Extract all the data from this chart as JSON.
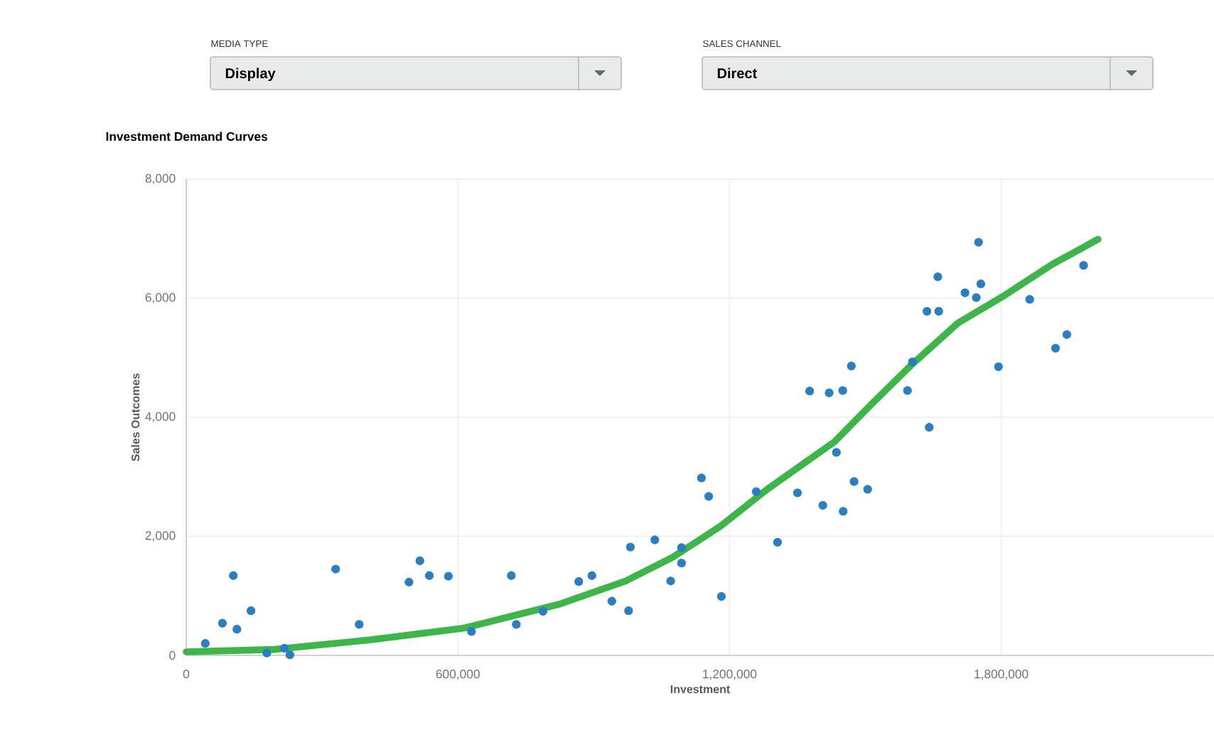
{
  "chart_data": {
    "type": "scatter",
    "title": "Investment Demand Curves",
    "xlabel": "Investment",
    "ylabel": "Sales Outcomes",
    "annotations": [
      "MEDIA TYPE",
      "Display",
      "SALES CHANNEL",
      "Direct"
    ],
    "xlim": [
      0,
      2270000
    ],
    "ylim": [
      0,
      8000
    ],
    "xticks": [
      0,
      {
        "value": 600000,
        "label": "600,000"
      },
      {
        "value": 1200000,
        "label": "1,200,000"
      },
      {
        "value": 1800000,
        "label": "1,800,000"
      }
    ],
    "yticks": [
      0,
      {
        "value": 2000,
        "label": "2,000"
      },
      {
        "value": 4000,
        "label": "4,000"
      },
      {
        "value": 6000,
        "label": "6,000"
      },
      {
        "value": 8000,
        "label": "8,000"
      }
    ],
    "grid": true,
    "series": [
      {
        "type": "scatter",
        "marker": "circle",
        "color": "#2b7fc1",
        "x": [
          42000,
          80000,
          104000,
          112000,
          143000,
          178000,
          217000,
          229000,
          330000,
          382000,
          492000,
          516000,
          537000,
          579000,
          630000,
          718000,
          729000,
          788000,
          867000,
          896000,
          940000,
          977000,
          981000,
          1035000,
          1070000,
          1094000,
          1094000,
          1138000,
          1154000,
          1182000,
          1259000,
          1306000,
          1350000,
          1377000,
          1406000,
          1420000,
          1436000,
          1450000,
          1451000,
          1469000,
          1475000,
          1505000,
          1593000,
          1604000,
          1641000,
          1636000,
          1662000,
          1660000,
          1720000,
          1745000,
          1750000,
          1755000,
          1794000,
          1863000,
          1920000,
          1945000,
          1982000
        ],
        "values": [
          200,
          540,
          1340,
          440,
          750,
          40,
          120,
          10,
          1450,
          520,
          1230,
          1590,
          1340,
          1330,
          400,
          1340,
          520,
          740,
          1240,
          1340,
          910,
          750,
          1820,
          1940,
          1250,
          1810,
          1550,
          2980,
          2670,
          990,
          2750,
          1900,
          2730,
          4440,
          2520,
          4410,
          3410,
          4450,
          2420,
          4860,
          2920,
          2790,
          4450,
          4930,
          3830,
          5780,
          5780,
          6360,
          6090,
          6010,
          6940,
          6240,
          4850,
          5980,
          5160,
          5390,
          6550
        ]
      },
      {
        "type": "line",
        "marker": "none",
        "color": "#3db549",
        "x": [
          0,
          196000,
          405000,
          615000,
          824000,
          971000,
          1075000,
          1180000,
          1285000,
          1432000,
          1515000,
          1599000,
          1704000,
          1808000,
          1913000,
          2014000
        ],
        "values": [
          60,
          100,
          260,
          460,
          860,
          1250,
          1650,
          2170,
          2800,
          3590,
          4230,
          4860,
          5580,
          6050,
          6570,
          6990
        ]
      }
    ]
  }
}
